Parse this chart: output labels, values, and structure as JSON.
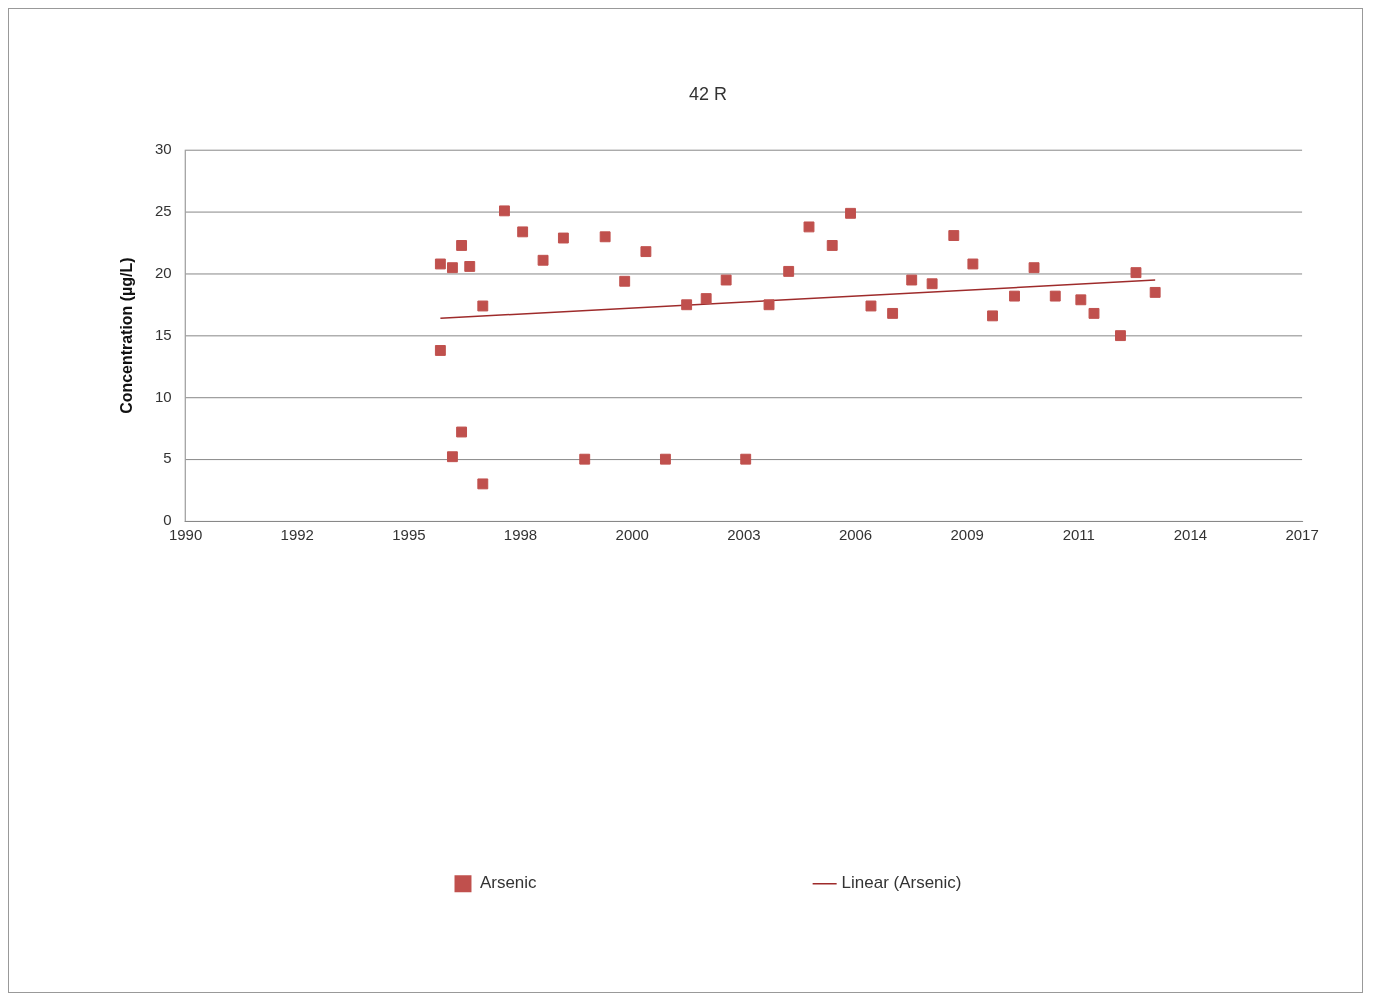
{
  "chart_data": {
    "type": "scatter",
    "title": "42 R",
    "ylabel": "Concentration (µg/L)",
    "xlim": [
      "1990-01-01",
      "2017-05-20"
    ],
    "xticks": [
      {
        "value": "1990-01-01",
        "label": "1990"
      },
      {
        "value": "1992-09-27",
        "label": "1992"
      },
      {
        "value": "1995-06-24",
        "label": "1995"
      },
      {
        "value": "1998-03-20",
        "label": "1998"
      },
      {
        "value": "2000-12-15",
        "label": "2000"
      },
      {
        "value": "2003-09-11",
        "label": "2003"
      },
      {
        "value": "2006-06-07",
        "label": "2006"
      },
      {
        "value": "2009-03-03",
        "label": "2009"
      },
      {
        "value": "2011-11-28",
        "label": "2011"
      },
      {
        "value": "2014-08-24",
        "label": "2014"
      },
      {
        "value": "2017-05-20",
        "label": "2017"
      }
    ],
    "ylim": [
      0,
      30
    ],
    "yticks": [
      0,
      5,
      10,
      15,
      20,
      25,
      30
    ],
    "grid": "y",
    "legend": "bottom",
    "marker": "square",
    "series": [
      {
        "name": "Arsenic",
        "type": "scatter",
        "color": "#c0504d",
        "x": [
          "1996-04-01",
          "1996-04-01",
          "1996-07-18",
          "1996-07-18",
          "1996-10-08",
          "1996-10-08",
          "1996-12-20",
          "1997-04-16",
          "1997-04-16",
          "1997-10-27",
          "1998-04-08",
          "1998-10-08",
          "1999-04-08",
          "1999-10-16",
          "2000-04-16",
          "2000-10-08",
          "2001-04-16",
          "2001-10-08",
          "2002-04-16",
          "2002-10-08",
          "2003-04-05",
          "2003-09-27",
          "2004-04-23",
          "2004-10-16",
          "2005-04-16",
          "2005-11-10",
          "2006-04-23",
          "2006-10-23",
          "2007-05-05",
          "2007-10-23",
          "2008-04-23",
          "2008-11-03",
          "2009-04-23",
          "2009-10-16",
          "2010-05-01",
          "2010-10-23",
          "2011-05-01",
          "2011-12-16",
          "2012-04-12",
          "2012-12-05",
          "2013-04-23",
          "2013-10-12"
        ],
        "values": [
          13.8,
          20.8,
          20.5,
          5.2,
          22.3,
          7.2,
          20.6,
          17.4,
          3.0,
          25.1,
          23.4,
          21.1,
          22.9,
          5.0,
          23.0,
          19.4,
          21.8,
          5.0,
          17.5,
          18.0,
          19.5,
          5.0,
          17.5,
          20.2,
          23.8,
          22.3,
          24.9,
          17.4,
          16.8,
          19.5,
          19.2,
          23.1,
          20.8,
          16.6,
          18.2,
          20.5,
          18.2,
          17.9,
          16.8,
          15.0,
          20.1,
          18.5
        ]
      },
      {
        "name": "Linear (Arsenic)",
        "type": "line",
        "color": "#9e2b2b",
        "marker": "none",
        "line_style": "solid",
        "x": [
          "1996-04-01",
          "2013-10-12"
        ],
        "values": [
          16.4,
          19.5
        ]
      }
    ]
  }
}
